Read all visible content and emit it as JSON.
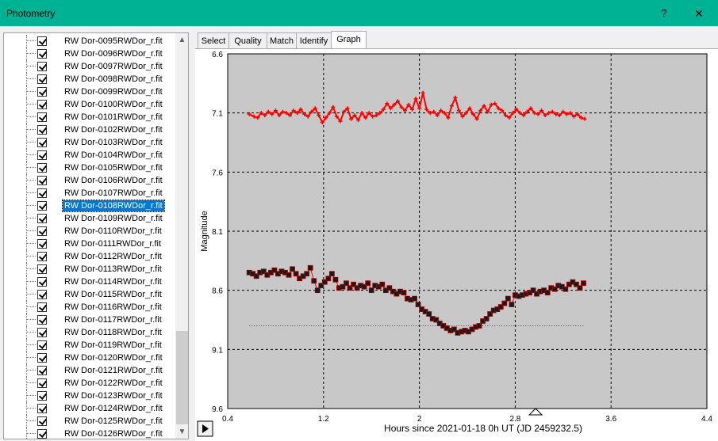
{
  "window": {
    "title": "Photometry",
    "help_label": "?",
    "close_label": "✕"
  },
  "tree": {
    "items": [
      {
        "label": "RW Dor-0095RWDor_r.fit",
        "checked": true
      },
      {
        "label": "RW Dor-0096RWDor_r.fit",
        "checked": true
      },
      {
        "label": "RW Dor-0097RWDor_r.fit",
        "checked": true
      },
      {
        "label": "RW Dor-0098RWDor_r.fit",
        "checked": true
      },
      {
        "label": "RW Dor-0099RWDor_r.fit",
        "checked": true
      },
      {
        "label": "RW Dor-0100RWDor_r.fit",
        "checked": true
      },
      {
        "label": "RW Dor-0101RWDor_r.fit",
        "checked": true
      },
      {
        "label": "RW Dor-0102RWDor_r.fit",
        "checked": true
      },
      {
        "label": "RW Dor-0103RWDor_r.fit",
        "checked": true
      },
      {
        "label": "RW Dor-0104RWDor_r.fit",
        "checked": true
      },
      {
        "label": "RW Dor-0105RWDor_r.fit",
        "checked": true
      },
      {
        "label": "RW Dor-0106RWDor_r.fit",
        "checked": true
      },
      {
        "label": "RW Dor-0107RWDor_r.fit",
        "checked": true
      },
      {
        "label": "RW Dor-0108RWDor_r.fit",
        "checked": true,
        "selected": true
      },
      {
        "label": "RW Dor-0109RWDor_r.fit",
        "checked": true
      },
      {
        "label": "RW Dor-0110RWDor_r.fit",
        "checked": true
      },
      {
        "label": "RW Dor-0111RWDor_r.fit",
        "checked": true
      },
      {
        "label": "RW Dor-0112RWDor_r.fit",
        "checked": true
      },
      {
        "label": "RW Dor-0113RWDor_r.fit",
        "checked": true
      },
      {
        "label": "RW Dor-0114RWDor_r.fit",
        "checked": true
      },
      {
        "label": "RW Dor-0115RWDor_r.fit",
        "checked": true
      },
      {
        "label": "RW Dor-0116RWDor_r.fit",
        "checked": true
      },
      {
        "label": "RW Dor-0117RWDor_r.fit",
        "checked": true
      },
      {
        "label": "RW Dor-0118RWDor_r.fit",
        "checked": true
      },
      {
        "label": "RW Dor-0119RWDor_r.fit",
        "checked": true
      },
      {
        "label": "RW Dor-0120RWDor_r.fit",
        "checked": true
      },
      {
        "label": "RW Dor-0121RWDor_r.fit",
        "checked": true
      },
      {
        "label": "RW Dor-0122RWDor_r.fit",
        "checked": true
      },
      {
        "label": "RW Dor-0123RWDor_r.fit",
        "checked": true
      },
      {
        "label": "RW Dor-0124RWDor_r.fit",
        "checked": true
      },
      {
        "label": "RW Dor-0125RWDor_r.fit",
        "checked": true
      },
      {
        "label": "RW Dor-0126RWDor_r.fit",
        "checked": true
      }
    ]
  },
  "tabs": [
    {
      "label": "Select",
      "active": false
    },
    {
      "label": "Quality",
      "active": false
    },
    {
      "label": "Match",
      "active": false
    },
    {
      "label": "Identify",
      "active": false
    },
    {
      "label": "Graph",
      "active": true
    }
  ],
  "colors": {
    "accent": "#00b294",
    "selection": "#0078d7",
    "plot_bg": "#c8c8c8",
    "comparison_series": "#ff0000",
    "target_marker": "#1a1a1a",
    "target_line": "#ff0000"
  },
  "icons": {
    "play": "play-icon",
    "marker": "triangle-marker-icon"
  },
  "chart_data": {
    "type": "scatter",
    "ylabel": "Magnitude",
    "xlabel": "Hours since 2021-01-18 0h UT (JD 2459232.5)",
    "xlim": [
      0.4,
      4.4
    ],
    "ylim": [
      6.6,
      9.6
    ],
    "y_inverted": true,
    "grid": true,
    "x_ticks": [
      "0.4",
      "1.2",
      "2",
      "2.8",
      "3.6",
      "4.4"
    ],
    "y_ticks": [
      "6.6",
      "7.1",
      "7.6",
      "8.1",
      "8.6",
      "9.1",
      "9.6"
    ],
    "triangle_marker_x": 2.97,
    "reference_line": {
      "y": 8.9,
      "x_start": 0.58,
      "x_end": 3.38
    },
    "series": [
      {
        "style": "line-plus",
        "x": [
          0.58,
          0.62,
          0.65,
          0.68,
          0.71,
          0.74,
          0.77,
          0.8,
          0.83,
          0.86,
          0.89,
          0.92,
          0.95,
          0.98,
          1.01,
          1.04,
          1.07,
          1.1,
          1.13,
          1.16,
          1.19,
          1.22,
          1.25,
          1.28,
          1.31,
          1.34,
          1.37,
          1.4,
          1.43,
          1.46,
          1.49,
          1.52,
          1.55,
          1.58,
          1.61,
          1.64,
          1.67,
          1.7,
          1.73,
          1.76,
          1.79,
          1.82,
          1.85,
          1.88,
          1.91,
          1.94,
          1.97,
          2.0,
          2.03,
          2.06,
          2.09,
          2.12,
          2.15,
          2.18,
          2.21,
          2.24,
          2.27,
          2.3,
          2.33,
          2.36,
          2.39,
          2.42,
          2.45,
          2.48,
          2.51,
          2.54,
          2.57,
          2.6,
          2.63,
          2.66,
          2.69,
          2.72,
          2.75,
          2.78,
          2.81,
          2.84,
          2.87,
          2.9,
          2.93,
          2.96,
          2.99,
          3.02,
          3.05,
          3.08,
          3.11,
          3.14,
          3.17,
          3.2,
          3.23,
          3.26,
          3.29,
          3.32,
          3.35,
          3.38
        ],
        "y": [
          7.11,
          7.13,
          7.14,
          7.1,
          7.12,
          7.09,
          7.11,
          7.08,
          7.12,
          7.09,
          7.1,
          7.12,
          7.08,
          7.1,
          7.07,
          7.11,
          7.13,
          7.09,
          7.06,
          7.12,
          7.18,
          7.14,
          7.1,
          7.05,
          7.13,
          7.17,
          7.09,
          7.06,
          7.15,
          7.12,
          7.16,
          7.1,
          7.14,
          7.1,
          7.13,
          7.12,
          7.1,
          7.07,
          7.02,
          7.06,
          7.03,
          7.0,
          7.05,
          7.08,
          7.03,
          7.07,
          6.98,
          7.06,
          6.93,
          7.07,
          7.1,
          7.09,
          7.12,
          7.08,
          7.1,
          7.14,
          7.04,
          6.97,
          7.08,
          7.13,
          7.1,
          7.06,
          7.11,
          7.15,
          7.08,
          7.04,
          7.09,
          7.03,
          7.02,
          7.06,
          7.08,
          7.12,
          7.14,
          7.1,
          7.07,
          7.1,
          7.12,
          7.09,
          7.06,
          7.1,
          7.11,
          7.08,
          7.12,
          7.1,
          7.09,
          7.11,
          7.12,
          7.09,
          7.11,
          7.1,
          7.13,
          7.11,
          7.14,
          7.15
        ]
      },
      {
        "style": "square-markers",
        "x": [
          0.58,
          0.61,
          0.64,
          0.67,
          0.7,
          0.73,
          0.76,
          0.79,
          0.82,
          0.85,
          0.88,
          0.91,
          0.94,
          0.97,
          1.0,
          1.03,
          1.06,
          1.09,
          1.12,
          1.15,
          1.18,
          1.21,
          1.24,
          1.27,
          1.3,
          1.33,
          1.36,
          1.39,
          1.42,
          1.45,
          1.48,
          1.51,
          1.54,
          1.57,
          1.6,
          1.63,
          1.66,
          1.69,
          1.72,
          1.75,
          1.78,
          1.81,
          1.84,
          1.87,
          1.9,
          1.93,
          1.96,
          1.99,
          2.02,
          2.05,
          2.08,
          2.11,
          2.14,
          2.17,
          2.2,
          2.23,
          2.26,
          2.29,
          2.32,
          2.35,
          2.38,
          2.41,
          2.44,
          2.47,
          2.5,
          2.53,
          2.56,
          2.59,
          2.62,
          2.65,
          2.68,
          2.71,
          2.74,
          2.77,
          2.8,
          2.83,
          2.86,
          2.89,
          2.92,
          2.95,
          2.98,
          3.01,
          3.04,
          3.07,
          3.1,
          3.13,
          3.16,
          3.19,
          3.22,
          3.25,
          3.28,
          3.31,
          3.34,
          3.37
        ],
        "y": [
          8.45,
          8.46,
          8.48,
          8.45,
          8.44,
          8.47,
          8.45,
          8.43,
          8.46,
          8.44,
          8.45,
          8.47,
          8.42,
          8.46,
          8.5,
          8.48,
          8.46,
          8.41,
          8.52,
          8.6,
          8.56,
          8.53,
          8.5,
          8.46,
          8.51,
          8.58,
          8.57,
          8.54,
          8.58,
          8.55,
          8.58,
          8.56,
          8.57,
          8.54,
          8.6,
          8.56,
          8.57,
          8.55,
          8.6,
          8.58,
          8.61,
          8.63,
          8.61,
          8.62,
          8.67,
          8.68,
          8.67,
          8.72,
          8.76,
          8.78,
          8.8,
          8.84,
          8.85,
          8.88,
          8.9,
          8.92,
          8.94,
          8.93,
          8.96,
          8.95,
          8.94,
          8.95,
          8.93,
          8.91,
          8.9,
          8.86,
          8.84,
          8.8,
          8.77,
          8.76,
          8.74,
          8.71,
          8.67,
          8.72,
          8.64,
          8.65,
          8.64,
          8.63,
          8.62,
          8.6,
          8.63,
          8.61,
          8.6,
          8.62,
          8.58,
          8.59,
          8.56,
          8.57,
          8.59,
          8.55,
          8.53,
          8.55,
          8.58,
          8.54
        ]
      }
    ]
  }
}
